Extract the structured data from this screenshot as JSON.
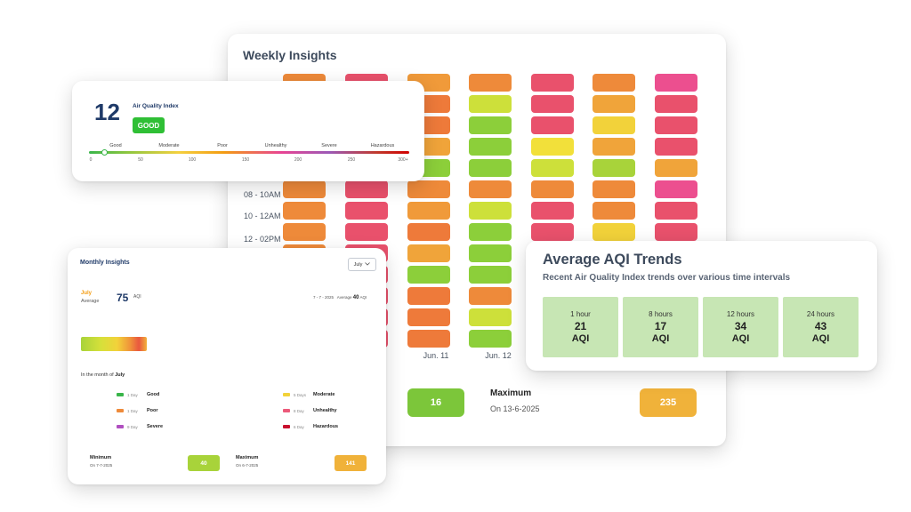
{
  "weekly": {
    "title": "Weekly Insights",
    "time_labels": [
      "08 - 10AM",
      "10 - 12AM",
      "12 - 02PM"
    ],
    "date_labels": [
      "Jun. 11",
      "Jun. 12"
    ],
    "columns": [
      [
        "#ee8a3a",
        "#f0a43a",
        "#ee8a3a",
        "#f0a43a",
        "#ee8a3a",
        "#ee8a3a",
        "#ee8a3a",
        "#ee8a3a",
        "#ee8a3a",
        "#f0a43a",
        "#ee8a3a",
        "#ee8a3a",
        "#ee8a3a"
      ],
      [
        "#e9516c",
        "#e9516c",
        "#e9516c",
        "#e9516c",
        "#e9516c",
        "#e9516c",
        "#e9516c",
        "#e9516c",
        "#e9516c",
        "#e9516c",
        "#e9516c",
        "#e9516c",
        "#e9516c"
      ],
      [
        "#f09a3a",
        "#ee7a3a",
        "#ee7a3a",
        "#f0a43a",
        "#8ccf3a",
        "#ee8a3a",
        "#f09a3a",
        "#ee7a3a",
        "#f0a43a",
        "#8ccf3a",
        "#ee7a3a",
        "#ee7a3a",
        "#ee7a3a"
      ],
      [
        "#ee8a3a",
        "#cde03a",
        "#8ccf3a",
        "#8ccf3a",
        "#8ccf3a",
        "#ee8a3a",
        "#cde03a",
        "#8ccf3a",
        "#8ccf3a",
        "#8ccf3a",
        "#ee8a3a",
        "#cde03a",
        "#8ccf3a"
      ],
      [
        "#e9516c",
        "#e9516c",
        "#e9516c",
        "#f2e03a",
        "#cde03a",
        "#ee8a3a",
        "#e9516c",
        "#e9516c"
      ],
      [
        "#ee8a3a",
        "#f0a43a",
        "#f2d23a",
        "#f0a43a",
        "#a8d33a",
        "#ee8a3a",
        "#ee8a3a",
        "#f2d23a"
      ],
      [
        "#ec4f8f",
        "#e9516c",
        "#e9516c",
        "#e9516c",
        "#f0a43a",
        "#ec4f8f",
        "#e9516c",
        "#e9516c"
      ]
    ],
    "min_value": "16",
    "min_color": "#7cc63a",
    "max_label": "Maximum",
    "max_date": "On 13-6-2025",
    "max_value": "235",
    "max_color": "#f0b23a"
  },
  "aqi": {
    "value": "12",
    "label": "Air Quality Index",
    "status": "GOOD",
    "categories": [
      "Good",
      "Moderate",
      "Poor",
      "Unhealthy",
      "Severe",
      "Hazardous"
    ],
    "ticks": [
      "0",
      "50",
      "100",
      "150",
      "200",
      "250",
      "300+"
    ]
  },
  "monthly": {
    "title": "Monthly Insights",
    "selected_month": "July",
    "month_label": "July",
    "average_word": "Average",
    "average_value": "75",
    "average_unit": "AQI",
    "range_date": "7 - 7 - 2025",
    "range_average_word": "Average",
    "range_average_value": "40",
    "range_unit": "AQI",
    "in_month_prefix": "In the month of",
    "in_month_name": "July",
    "legend": [
      {
        "days": "1 Day",
        "name": "Good",
        "color": "#39b54a"
      },
      {
        "days": "1 Day",
        "name": "Poor",
        "color": "#ee8a3a"
      },
      {
        "days": "9 Day",
        "name": "Severe",
        "color": "#b04fc0"
      },
      {
        "days": "5 Days",
        "name": "Moderate",
        "color": "#f2d23a"
      },
      {
        "days": "8 Day",
        "name": "Unhealthy",
        "color": "#ec5a7a"
      },
      {
        "days": "6 Day",
        "name": "Hazardous",
        "color": "#c8102e"
      }
    ],
    "minimum": {
      "label": "Minimum",
      "date": "On 7-7-2025",
      "value": "40",
      "color": "#a8d33a"
    },
    "maximum": {
      "label": "Maximum",
      "date": "On 6-7-2025",
      "value": "141",
      "color": "#f0b23a"
    }
  },
  "trends": {
    "title": "Average AQI Trends",
    "subtitle": "Recent Air Quality Index trends over various time intervals",
    "items": [
      {
        "interval": "1 hour",
        "value": "21",
        "unit": "AQI"
      },
      {
        "interval": "8 hours",
        "value": "17",
        "unit": "AQI"
      },
      {
        "interval": "12 hours",
        "value": "34",
        "unit": "AQI"
      },
      {
        "interval": "24 hours",
        "value": "43",
        "unit": "AQI"
      }
    ]
  }
}
